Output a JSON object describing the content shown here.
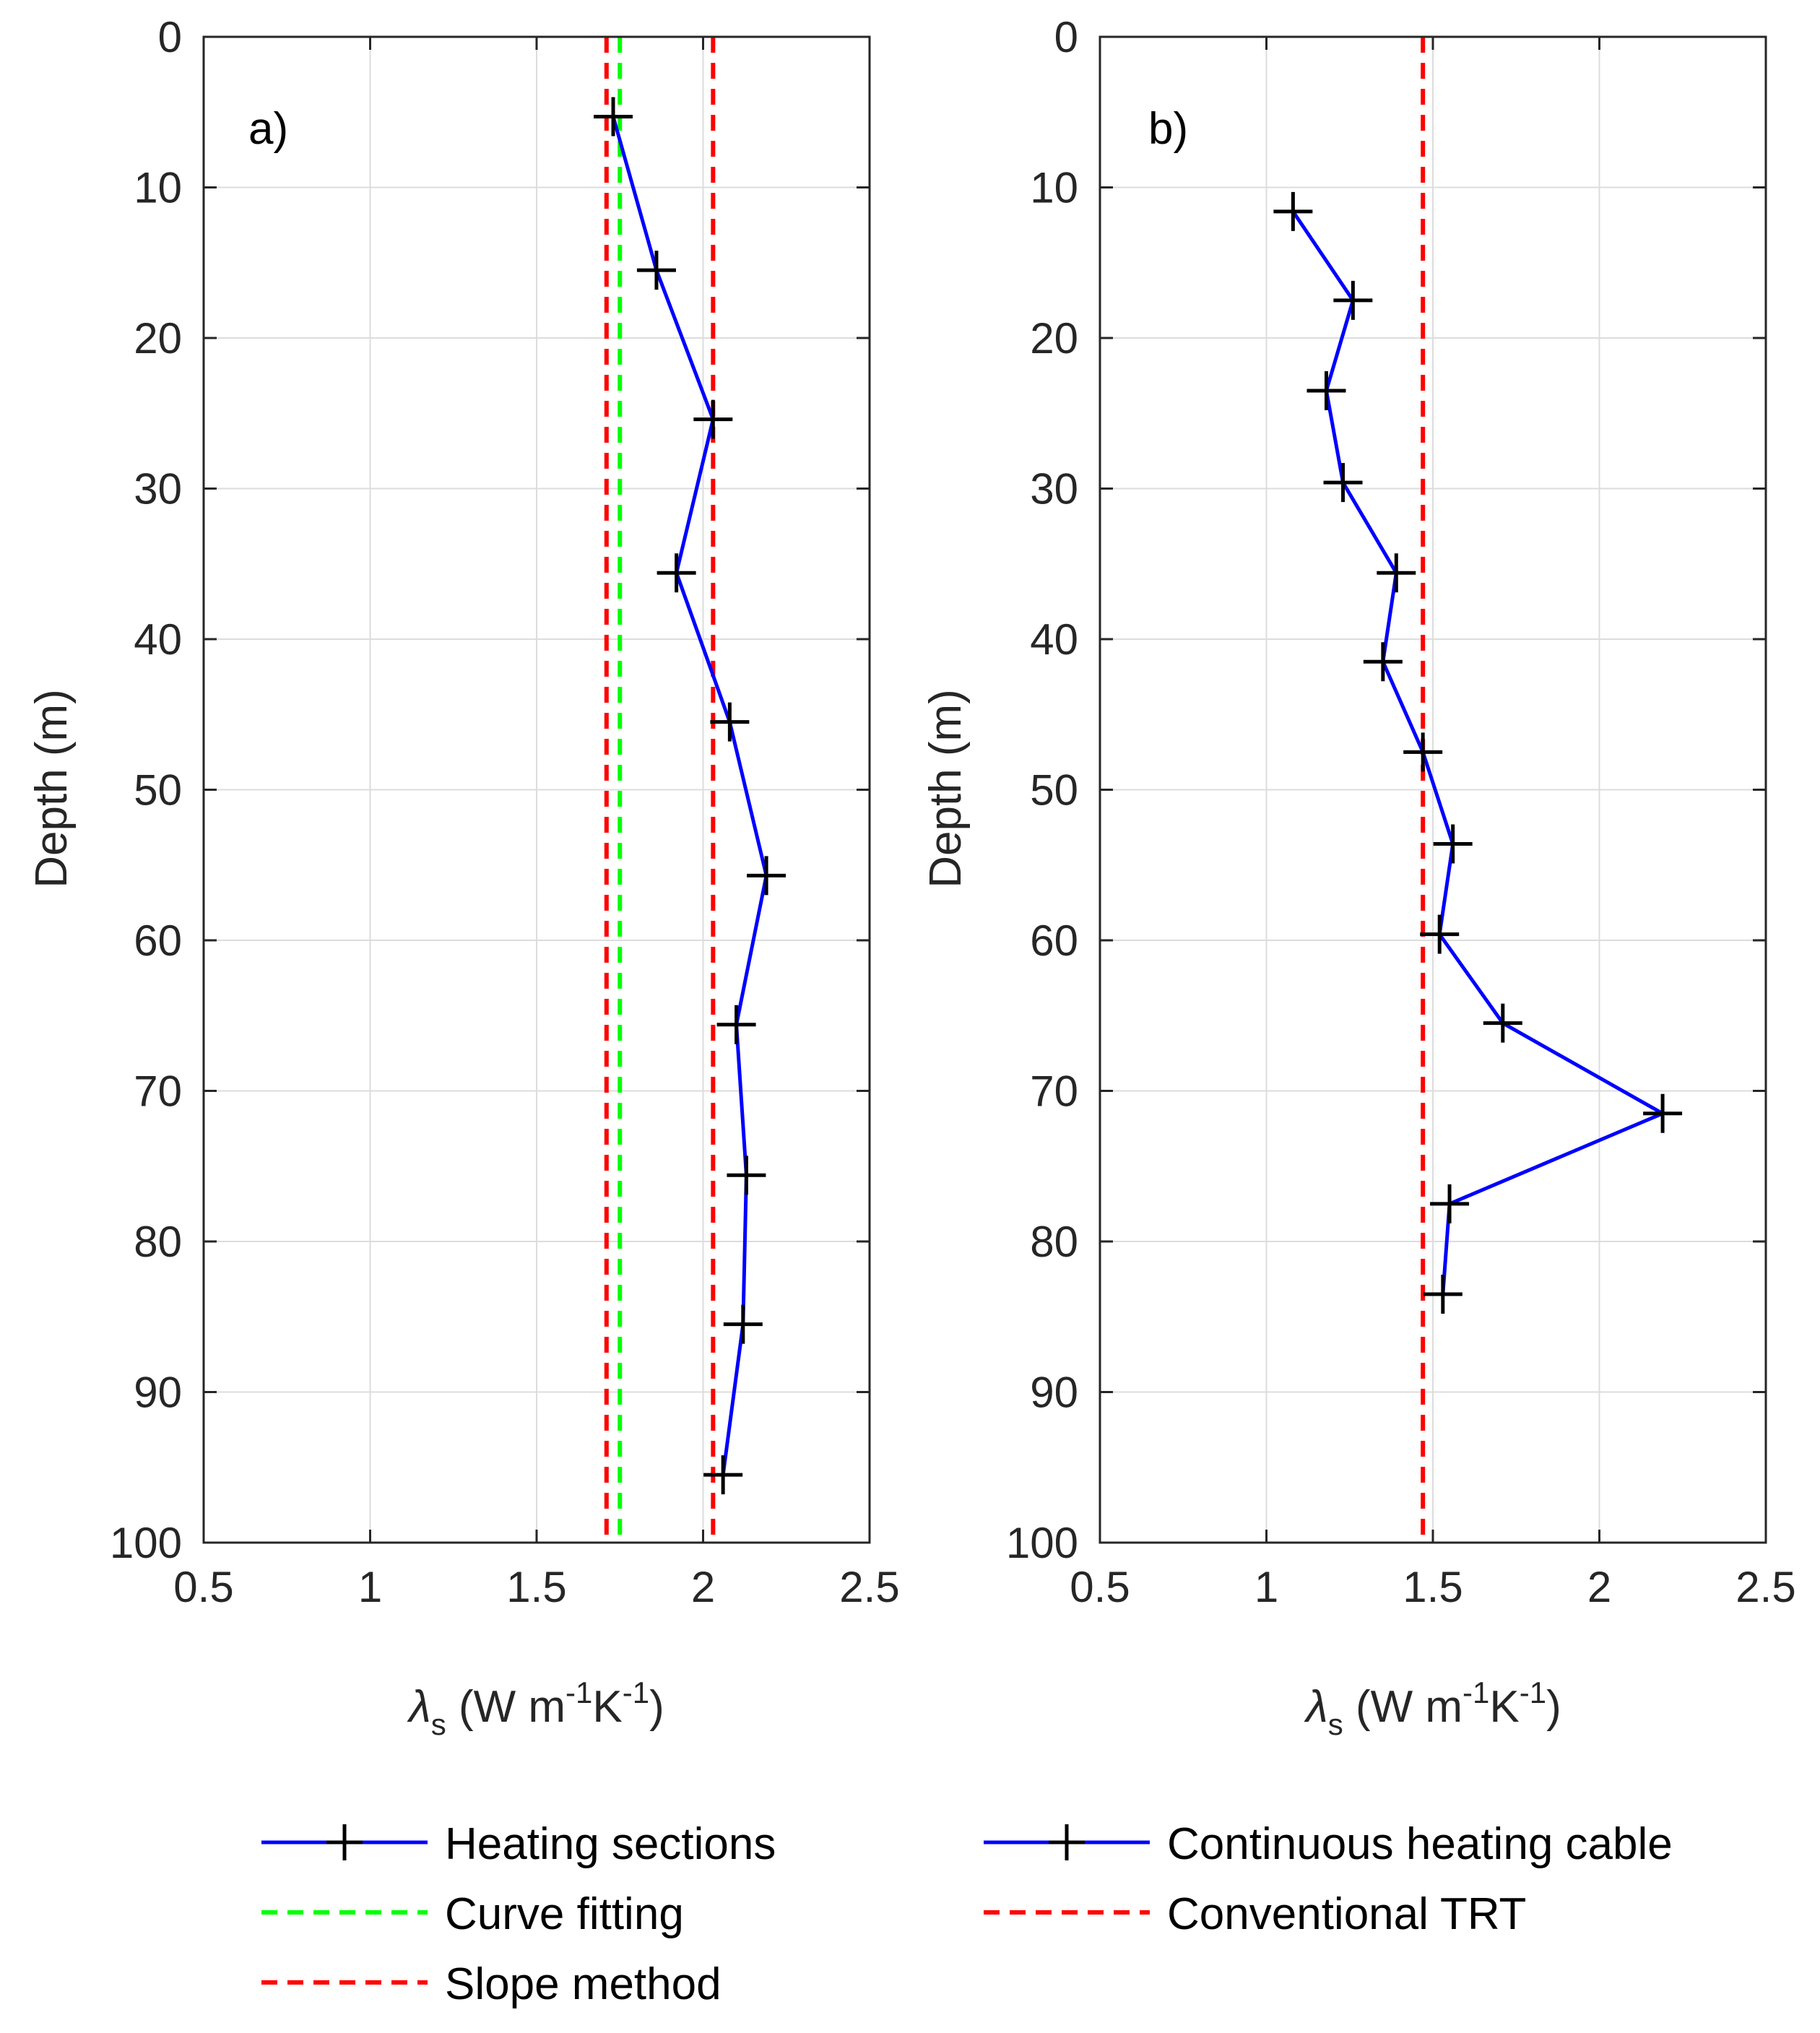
{
  "colors": {
    "blue_line": "#0000ff",
    "marker": "#000000",
    "green_dash": "#00ff00",
    "red_dash": "#ff0000",
    "grid": "#dcdcdc",
    "axis": "#262626"
  },
  "legend": {
    "heating_sections": "Heating sections",
    "curve_fitting": "Curve fitting",
    "slope_method": "Slope method",
    "continuous_heating_cable": "Continuous heating cable",
    "conventional_trt": "Conventional TRT"
  },
  "chart_data": [
    {
      "type": "line",
      "panel_label": "a)",
      "ylabel": "Depth (m)",
      "xlabel_symbol": "λ",
      "xlabel_subscript": "s",
      "xlabel_units_a": " (W m",
      "xlabel_exp1": "-1",
      "xlabel_units_b": "K",
      "xlabel_exp2": "-1",
      "xlabel_units_c": ")",
      "xlim": [
        0.5,
        2.5
      ],
      "ylim": [
        0,
        100
      ],
      "y_reversed": true,
      "xticks": [
        0.5,
        1,
        1.5,
        2,
        2.5
      ],
      "xtick_labels": [
        "0.5",
        "1",
        "1.5",
        "2",
        "2.5"
      ],
      "yticks": [
        0,
        10,
        20,
        30,
        40,
        50,
        60,
        70,
        80,
        90,
        100
      ],
      "ytick_labels": [
        "0",
        "10",
        "20",
        "30",
        "40",
        "50",
        "60",
        "70",
        "80",
        "90",
        "100"
      ],
      "grid": true,
      "series": [
        {
          "name": "Heating sections",
          "style": "solid-plus",
          "color": "#0000ff",
          "x": [
            1.73,
            1.86,
            2.03,
            1.92,
            2.08,
            2.19,
            2.1,
            2.13,
            2.12,
            2.06
          ],
          "y": [
            5.3,
            15.5,
            25.4,
            35.6,
            45.5,
            55.7,
            65.6,
            75.6,
            85.5,
            95.5
          ]
        }
      ],
      "reference_lines": [
        {
          "name": "Curve fitting",
          "x": 1.75,
          "color": "#00ff00"
        },
        {
          "name": "Slope method",
          "x": 1.71,
          "color": "#ff0000"
        },
        {
          "name": "Slope method",
          "x": 2.03,
          "color": "#ff0000"
        }
      ]
    },
    {
      "type": "line",
      "panel_label": "b)",
      "ylabel": "Depth (m)",
      "xlabel_symbol": "λ",
      "xlabel_subscript": "s",
      "xlabel_units_a": " (W m",
      "xlabel_exp1": "-1",
      "xlabel_units_b": "K",
      "xlabel_exp2": "-1",
      "xlabel_units_c": ")",
      "xlim": [
        0.5,
        2.5
      ],
      "ylim": [
        0,
        100
      ],
      "y_reversed": true,
      "xticks": [
        0.5,
        1,
        1.5,
        2,
        2.5
      ],
      "xtick_labels": [
        "0.5",
        "1",
        "1.5",
        "2",
        "2.5"
      ],
      "yticks": [
        0,
        10,
        20,
        30,
        40,
        50,
        60,
        70,
        80,
        90,
        100
      ],
      "ytick_labels": [
        "0",
        "10",
        "20",
        "30",
        "40",
        "50",
        "60",
        "70",
        "80",
        "90",
        "100"
      ],
      "grid": true,
      "series": [
        {
          "name": "Continuous heating cable",
          "style": "solid-plus",
          "color": "#0000ff",
          "x": [
            1.08,
            1.26,
            1.18,
            1.23,
            1.39,
            1.35,
            1.47,
            1.56,
            1.52,
            1.71,
            2.19,
            1.55,
            1.53
          ],
          "y": [
            11.6,
            17.5,
            23.5,
            29.6,
            35.6,
            41.5,
            47.5,
            53.6,
            59.6,
            65.5,
            71.5,
            77.5,
            83.5
          ]
        }
      ],
      "reference_lines": [
        {
          "name": "Conventional TRT",
          "x": 1.47,
          "color": "#ff0000"
        }
      ]
    }
  ]
}
